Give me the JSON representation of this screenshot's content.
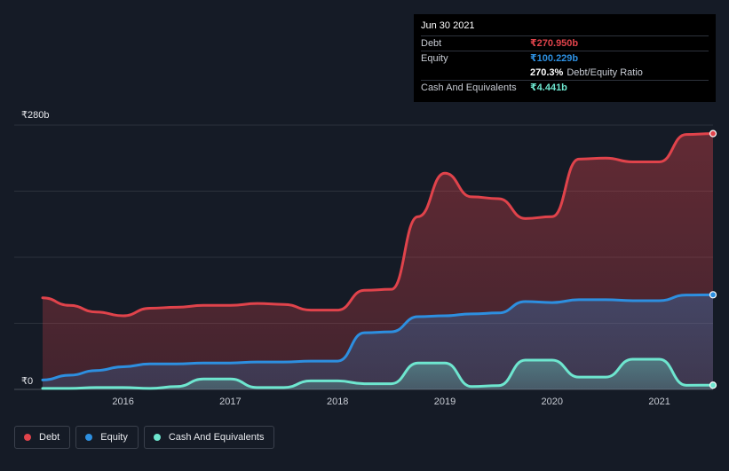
{
  "colors": {
    "debt": "#e0434b",
    "equity": "#2d8fe0",
    "cash": "#6ee6cf",
    "background": "#151b26",
    "grid": "#2c323c"
  },
  "tooltip": {
    "date": "Jun 30 2021",
    "debt_label": "Debt",
    "debt_value": "₹270.950b",
    "equity_label": "Equity",
    "equity_value": "₹100.229b",
    "ratio_value": "270.3%",
    "ratio_label": "Debt/Equity Ratio",
    "cash_label": "Cash And Equivalents",
    "cash_value": "₹4.441b"
  },
  "legend": {
    "debt": "Debt",
    "equity": "Equity",
    "cash": "Cash And Equivalents"
  },
  "chart_data": {
    "type": "area",
    "title": "",
    "xlabel": "",
    "ylabel": "",
    "y_ticks": [
      {
        "value": 0,
        "label": "₹0"
      },
      {
        "value": 280,
        "label": "₹280b"
      }
    ],
    "x_ticks": [
      {
        "value": 2016,
        "label": "2016"
      },
      {
        "value": 2017,
        "label": "2017"
      },
      {
        "value": 2018,
        "label": "2018"
      },
      {
        "value": 2019,
        "label": "2019"
      },
      {
        "value": 2020,
        "label": "2020"
      },
      {
        "value": 2021,
        "label": "2021"
      }
    ],
    "xlim": [
      2015.25,
      2021.5
    ],
    "ylim": [
      0,
      280
    ],
    "grid": true,
    "legend_position": "bottom-left",
    "series": [
      {
        "name": "Debt",
        "color": "#e0434b",
        "points": [
          [
            2015.25,
            97
          ],
          [
            2015.5,
            89
          ],
          [
            2015.75,
            82
          ],
          [
            2016.0,
            78
          ],
          [
            2016.25,
            86
          ],
          [
            2016.5,
            87
          ],
          [
            2016.75,
            89
          ],
          [
            2017.0,
            89
          ],
          [
            2017.25,
            91
          ],
          [
            2017.5,
            90
          ],
          [
            2017.75,
            84
          ],
          [
            2018.0,
            84
          ],
          [
            2018.25,
            105
          ],
          [
            2018.5,
            106
          ],
          [
            2018.75,
            183
          ],
          [
            2019.0,
            229
          ],
          [
            2019.25,
            204
          ],
          [
            2019.5,
            202
          ],
          [
            2019.75,
            181
          ],
          [
            2020.0,
            183
          ],
          [
            2020.25,
            244
          ],
          [
            2020.5,
            245
          ],
          [
            2020.75,
            241
          ],
          [
            2021.0,
            241
          ],
          [
            2021.25,
            270
          ],
          [
            2021.5,
            270.95
          ]
        ]
      },
      {
        "name": "Equity",
        "color": "#2d8fe0",
        "points": [
          [
            2015.25,
            10
          ],
          [
            2015.5,
            15
          ],
          [
            2015.75,
            20
          ],
          [
            2016.0,
            24
          ],
          [
            2016.25,
            27
          ],
          [
            2016.5,
            27
          ],
          [
            2016.75,
            28
          ],
          [
            2017.0,
            28
          ],
          [
            2017.25,
            29
          ],
          [
            2017.5,
            29
          ],
          [
            2017.75,
            30
          ],
          [
            2018.0,
            30
          ],
          [
            2018.25,
            60
          ],
          [
            2018.5,
            61
          ],
          [
            2018.75,
            77
          ],
          [
            2019.0,
            78
          ],
          [
            2019.25,
            80
          ],
          [
            2019.5,
            81
          ],
          [
            2019.75,
            93
          ],
          [
            2020.0,
            92
          ],
          [
            2020.25,
            95
          ],
          [
            2020.5,
            95
          ],
          [
            2020.75,
            94
          ],
          [
            2021.0,
            94
          ],
          [
            2021.25,
            100
          ],
          [
            2021.5,
            100.229
          ]
        ]
      },
      {
        "name": "Cash And Equivalents",
        "color": "#6ee6cf",
        "points": [
          [
            2015.25,
            1
          ],
          [
            2015.5,
            1
          ],
          [
            2015.75,
            2
          ],
          [
            2016.0,
            2
          ],
          [
            2016.25,
            1
          ],
          [
            2016.5,
            3
          ],
          [
            2016.75,
            11
          ],
          [
            2017.0,
            11
          ],
          [
            2017.25,
            2
          ],
          [
            2017.5,
            2
          ],
          [
            2017.75,
            9
          ],
          [
            2018.0,
            9
          ],
          [
            2018.25,
            6
          ],
          [
            2018.5,
            6
          ],
          [
            2018.75,
            28
          ],
          [
            2019.0,
            28
          ],
          [
            2019.25,
            3
          ],
          [
            2019.5,
            4
          ],
          [
            2019.75,
            31
          ],
          [
            2020.0,
            31
          ],
          [
            2020.25,
            13
          ],
          [
            2020.5,
            13
          ],
          [
            2020.75,
            32
          ],
          [
            2021.0,
            32
          ],
          [
            2021.25,
            4.4
          ],
          [
            2021.5,
            4.441
          ]
        ]
      }
    ]
  }
}
